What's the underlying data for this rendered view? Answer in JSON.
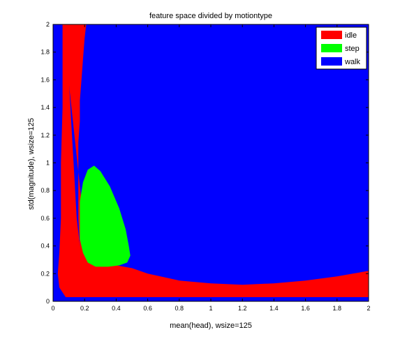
{
  "chart_data": {
    "type": "heatmap",
    "title": "feature space divided by motiontype",
    "xlabel": "mean(head), wsize=125",
    "ylabel": "std(magnitude), wsize=125",
    "xlim": [
      0,
      2
    ],
    "ylim": [
      0,
      2
    ],
    "x_ticks": [
      "0",
      "0.2",
      "0.4",
      "0.6",
      "0.8",
      "1",
      "1.2",
      "1.4",
      "1.6",
      "1.8",
      "2"
    ],
    "y_ticks": [
      "0",
      "0.2",
      "0.4",
      "0.6",
      "0.8",
      "1",
      "1.2",
      "1.4",
      "1.6",
      "1.8",
      "2"
    ],
    "grid": false,
    "legend_position": "top-right",
    "classes": [
      {
        "name": "idle",
        "color": "#ff0000"
      },
      {
        "name": "step",
        "color": "#00ff00"
      },
      {
        "name": "walk",
        "color": "#0000ff"
      }
    ],
    "regions": {
      "walk": "background (all remaining area)",
      "idle_boundary": [
        [
          0.07,
          2.0
        ],
        [
          0.09,
          1.8
        ],
        [
          0.1,
          1.6
        ],
        [
          0.11,
          1.4
        ],
        [
          0.12,
          1.2
        ],
        [
          0.13,
          1.0
        ],
        [
          0.14,
          0.8
        ],
        [
          0.15,
          0.6
        ],
        [
          0.17,
          0.4
        ],
        [
          0.22,
          0.3
        ],
        [
          0.4,
          0.26
        ],
        [
          0.5,
          0.24
        ],
        [
          0.6,
          0.2
        ],
        [
          0.8,
          0.15
        ],
        [
          1.0,
          0.13
        ],
        [
          1.2,
          0.12
        ],
        [
          1.4,
          0.13
        ],
        [
          1.6,
          0.15
        ],
        [
          1.8,
          0.18
        ],
        [
          2.0,
          0.22
        ],
        [
          2.0,
          0.03
        ],
        [
          0.08,
          0.03
        ],
        [
          0.04,
          0.1
        ],
        [
          0.03,
          0.2
        ],
        [
          0.04,
          0.35
        ],
        [
          0.05,
          0.6
        ],
        [
          0.05,
          1.0
        ],
        [
          0.06,
          1.4
        ],
        [
          0.06,
          2.0
        ]
      ],
      "idle_top": [
        [
          0.06,
          2.0
        ],
        [
          0.21,
          2.0
        ],
        [
          0.2,
          1.9
        ],
        [
          0.19,
          1.75
        ],
        [
          0.18,
          1.6
        ],
        [
          0.17,
          1.45
        ],
        [
          0.17,
          1.3
        ],
        [
          0.16,
          1.15
        ],
        [
          0.16,
          1.0
        ],
        [
          0.16,
          0.8
        ],
        [
          0.16,
          0.6
        ],
        [
          0.17,
          0.4
        ],
        [
          0.19,
          0.32
        ],
        [
          0.22,
          0.3
        ]
      ],
      "step_boundary": [
        [
          0.26,
          0.98
        ],
        [
          0.3,
          0.94
        ],
        [
          0.36,
          0.83
        ],
        [
          0.42,
          0.67
        ],
        [
          0.46,
          0.52
        ],
        [
          0.48,
          0.4
        ],
        [
          0.49,
          0.33
        ],
        [
          0.47,
          0.28
        ],
        [
          0.42,
          0.26
        ],
        [
          0.35,
          0.25
        ],
        [
          0.27,
          0.25
        ],
        [
          0.22,
          0.28
        ],
        [
          0.19,
          0.35
        ],
        [
          0.17,
          0.45
        ],
        [
          0.17,
          0.58
        ],
        [
          0.17,
          0.72
        ],
        [
          0.19,
          0.86
        ],
        [
          0.22,
          0.95
        ]
      ]
    }
  }
}
